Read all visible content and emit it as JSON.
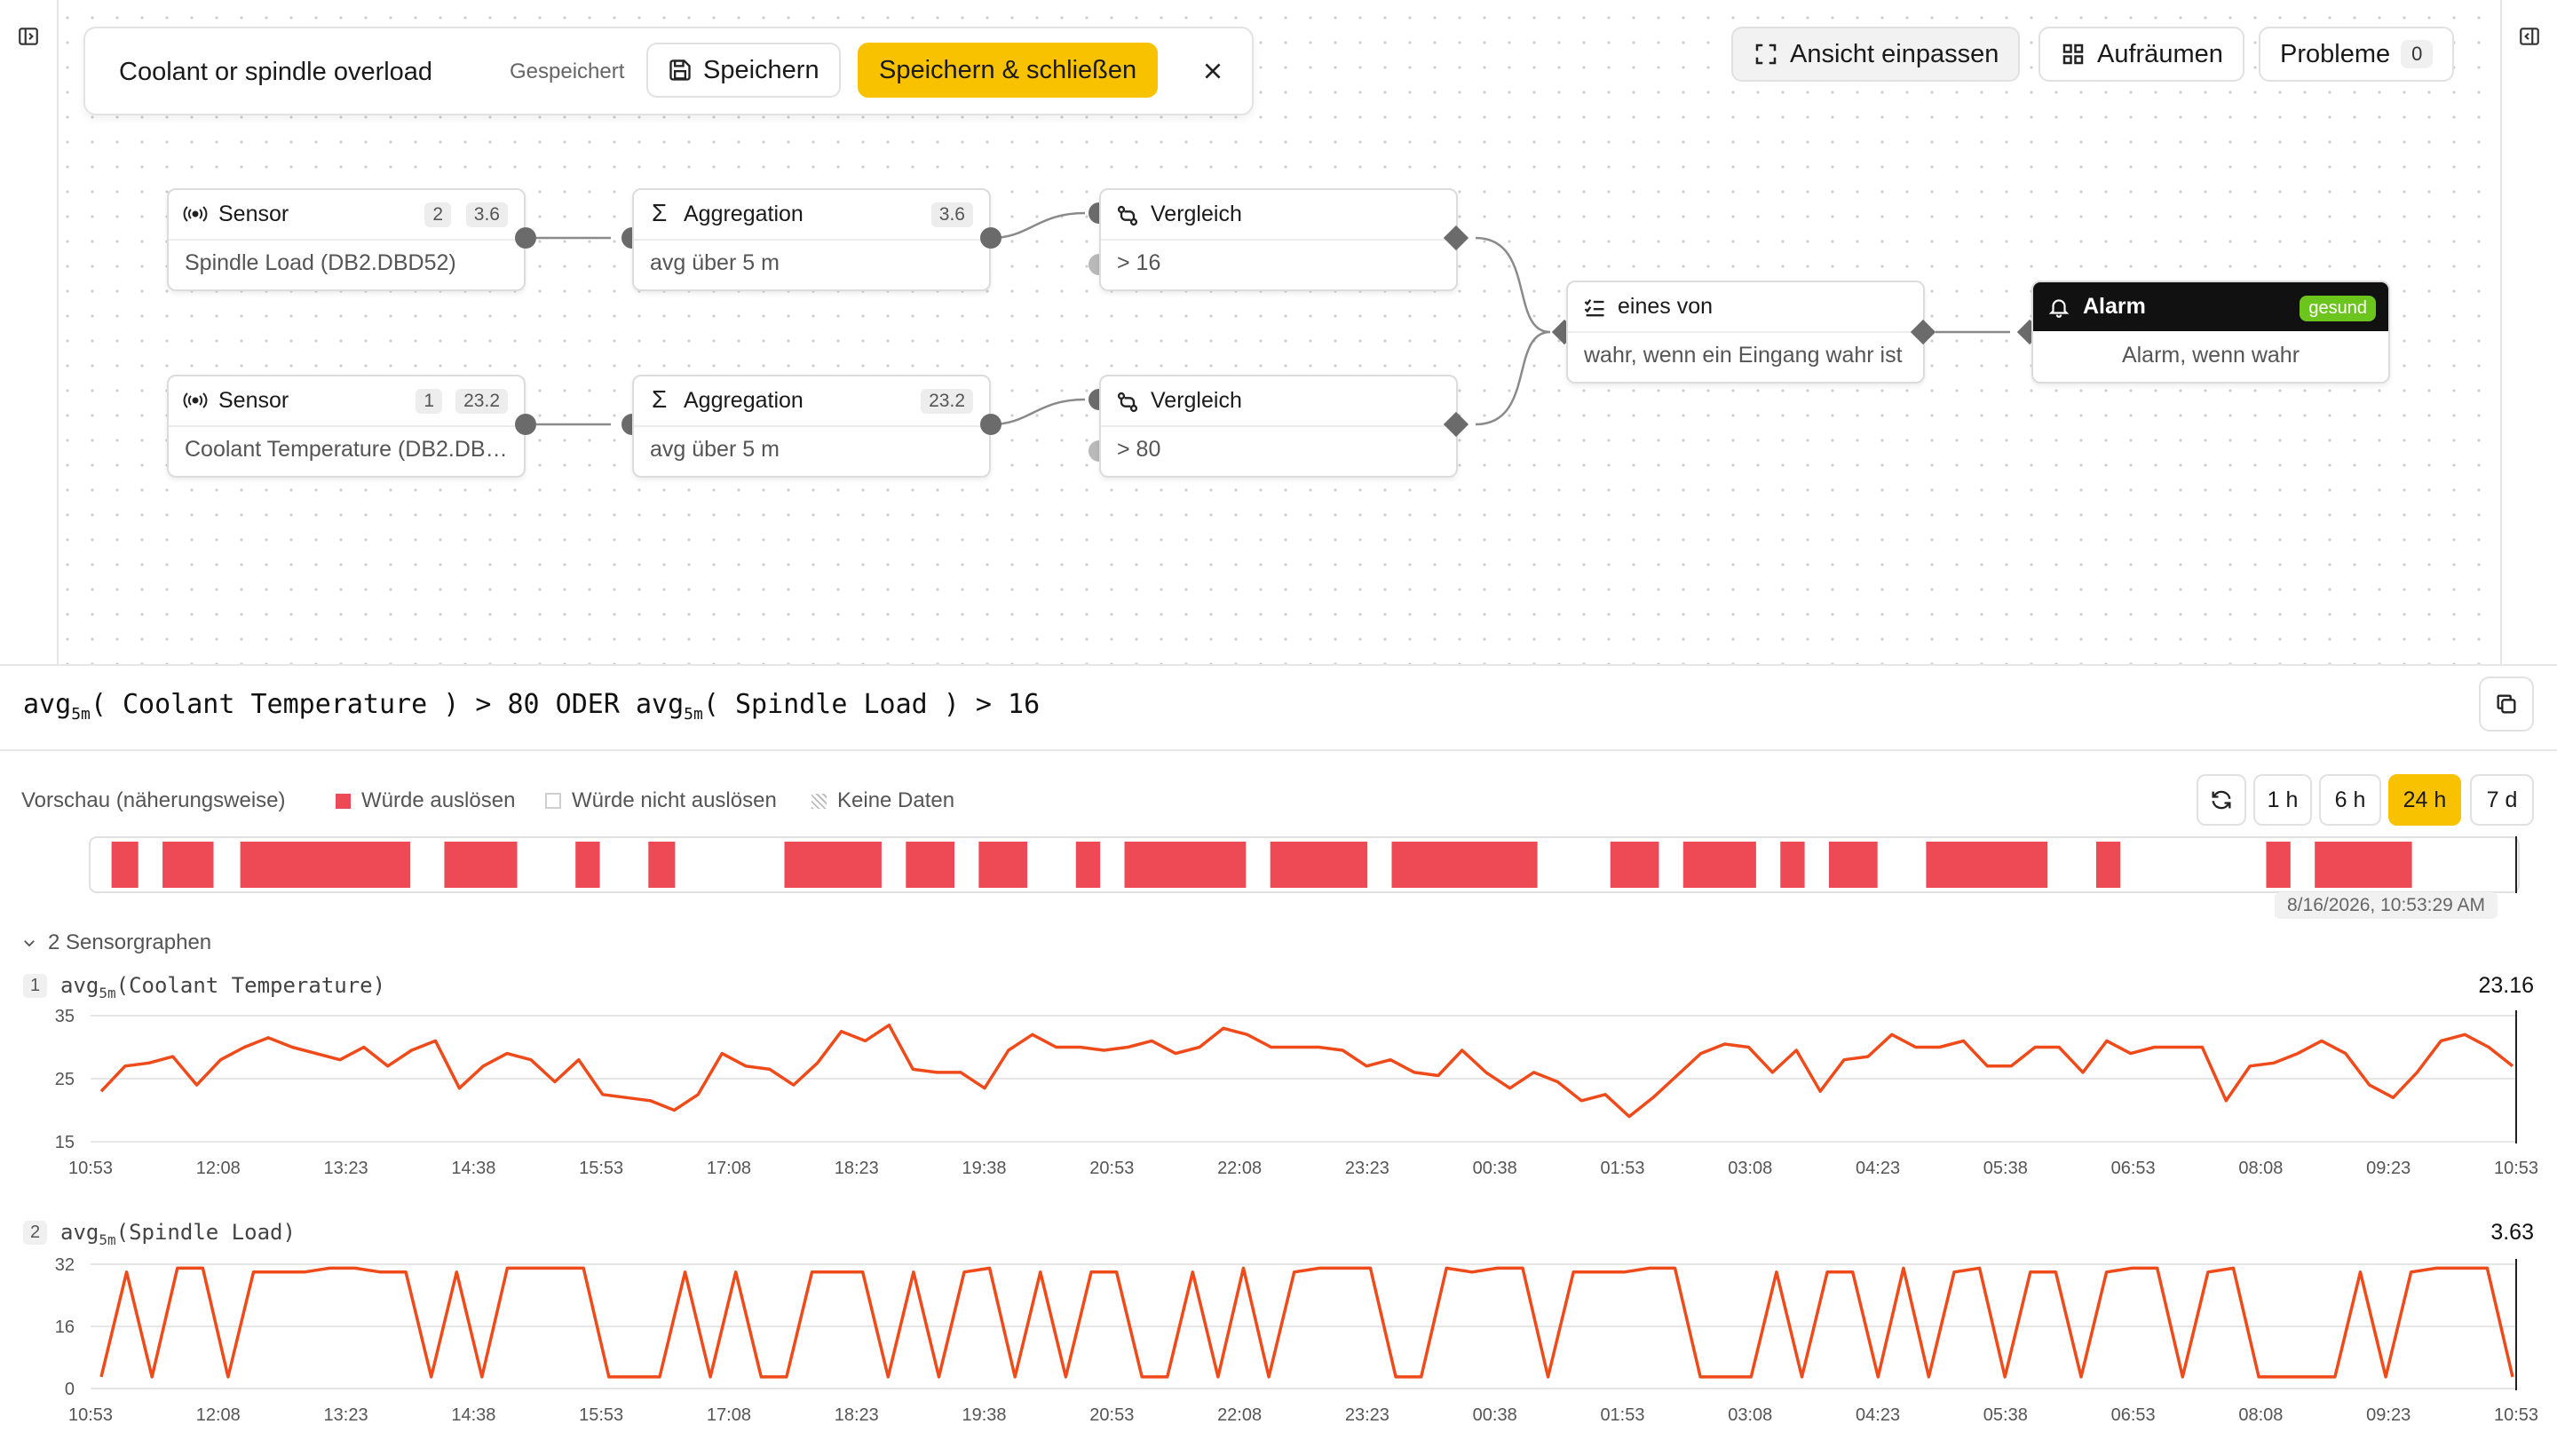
{
  "header": {
    "rule_name": "Coolant or spindle overload",
    "saved_status": "Gespeichert",
    "save_label": "Speichern",
    "save_close_label": "Speichern & schließen"
  },
  "toolbar": {
    "fit_view_label": "Ansicht einpassen",
    "tidy_label": "Aufräumen",
    "problems_label": "Probleme",
    "problems_count": "0"
  },
  "nodes": {
    "sensor1": {
      "title": "Sensor",
      "badge_a": "2",
      "badge_b": "3.6",
      "body": "Spindle Load (DB2.DBD52)"
    },
    "agg1": {
      "title": "Aggregation",
      "badge": "3.6",
      "body": "avg über 5 m"
    },
    "cmp1": {
      "title": "Vergleich",
      "body": "> 16"
    },
    "sensor2": {
      "title": "Sensor",
      "badge_a": "1",
      "badge_b": "23.2",
      "body": "Coolant Temperature (DB2.DB…"
    },
    "agg2": {
      "title": "Aggregation",
      "badge": "23.2",
      "body": "avg über 5 m"
    },
    "cmp2": {
      "title": "Vergleich",
      "body": "> 80"
    },
    "anyof": {
      "title": "eines von",
      "body": "wahr, wenn ein Eingang wahr ist"
    },
    "alarm": {
      "title": "Alarm",
      "status": "gesund",
      "body": "Alarm, wenn wahr"
    }
  },
  "formula": {
    "a_fn": "avg",
    "a_sub": "5m",
    "a_arg": "( Coolant Temperature ) > 80",
    "op": "ODER",
    "b_fn": "avg",
    "b_sub": "5m",
    "b_arg": "( Spindle Load ) > 16"
  },
  "preview": {
    "label": "Vorschau (näherungsweise)",
    "legend_trigger": "Würde auslösen",
    "legend_no_trigger": "Würde nicht auslösen",
    "legend_no_data": "Keine Daten",
    "ranges": [
      "1 h",
      "6 h",
      "24 h",
      "7 d"
    ],
    "active_range": "24 h",
    "cursor_timestamp": "8/16/2026, 10:53:29 AM",
    "trigger_color": "#ee4a55",
    "trigger_spans": [
      [
        0.009,
        0.02
      ],
      [
        0.03,
        0.051
      ],
      [
        0.062,
        0.132
      ],
      [
        0.146,
        0.176
      ],
      [
        0.2,
        0.21
      ],
      [
        0.23,
        0.241
      ],
      [
        0.286,
        0.326
      ],
      [
        0.336,
        0.356
      ],
      [
        0.366,
        0.386
      ],
      [
        0.406,
        0.416
      ],
      [
        0.426,
        0.476
      ],
      [
        0.486,
        0.526
      ],
      [
        0.536,
        0.596
      ],
      [
        0.626,
        0.646
      ],
      [
        0.656,
        0.686
      ],
      [
        0.696,
        0.706
      ],
      [
        0.716,
        0.736
      ],
      [
        0.756,
        0.806
      ],
      [
        0.826,
        0.836
      ],
      [
        0.896,
        0.906
      ],
      [
        0.916,
        0.956
      ]
    ]
  },
  "sensor_graphs": {
    "toggle_label": "2 Sensorgraphen",
    "line_color": "#ee4a1a",
    "x_ticks": [
      "10:53",
      "12:08",
      "13:23",
      "14:38",
      "15:53",
      "17:08",
      "18:23",
      "19:38",
      "20:53",
      "22:08",
      "23:23",
      "00:38",
      "01:53",
      "03:08",
      "04:23",
      "05:38",
      "06:53",
      "08:08",
      "09:23",
      "10:53"
    ],
    "graphs": [
      {
        "index": "1",
        "fn": "avg",
        "sub": "5m",
        "arg": "(Coolant Temperature)",
        "current": "23.16",
        "y_ticks": [
          "35",
          "25",
          "15"
        ],
        "ylim": [
          15,
          35
        ],
        "values": [
          23,
          27,
          27.5,
          28.5,
          24,
          28,
          30,
          31.5,
          30,
          29,
          28,
          30,
          27,
          29.5,
          31,
          23.5,
          27,
          29,
          28,
          24.5,
          28,
          22.5,
          22,
          21.5,
          20,
          22.5,
          29,
          27,
          26.5,
          24,
          27.5,
          32.5,
          31,
          33.5,
          26.5,
          26,
          26,
          23.5,
          29.5,
          32,
          30,
          30,
          29.5,
          30,
          31,
          29,
          30,
          33,
          32,
          30,
          30,
          30,
          29.5,
          27,
          28,
          26,
          25.5,
          29.5,
          26,
          23.5,
          26,
          24.5,
          21.5,
          22.5,
          19,
          22,
          25.5,
          29,
          30.5,
          30,
          26,
          29.5,
          23,
          28,
          28.5,
          32,
          30,
          30,
          31,
          27,
          27,
          30,
          30,
          26,
          31,
          29,
          30,
          30,
          30,
          21.5,
          27,
          27.5,
          29,
          31,
          29,
          24,
          22,
          26,
          31,
          32,
          30,
          27
        ]
      },
      {
        "index": "2",
        "fn": "avg",
        "sub": "5m",
        "arg": "(Spindle Load)",
        "current": "3.63",
        "y_ticks": [
          "32",
          "16",
          "0"
        ],
        "ylim": [
          0,
          32
        ],
        "values": [
          3,
          30,
          3,
          31,
          31,
          3,
          30,
          30,
          30,
          31,
          31,
          30,
          30,
          3,
          30,
          3,
          31,
          31,
          31,
          31,
          3,
          3,
          3,
          30,
          3,
          30,
          3,
          3,
          30,
          30,
          30,
          3,
          30,
          3,
          30,
          31,
          3,
          30,
          3,
          30,
          30,
          3,
          3,
          30,
          3,
          31,
          3,
          30,
          31,
          31,
          31,
          3,
          3,
          31,
          30,
          31,
          31,
          3,
          30,
          30,
          30,
          31,
          31,
          3,
          3,
          3,
          30,
          3,
          30,
          30,
          3,
          31,
          3,
          30,
          31,
          3,
          30,
          30,
          3,
          30,
          31,
          31,
          3,
          30,
          31,
          3,
          3,
          3,
          3,
          30,
          3,
          30,
          31,
          31,
          31,
          3
        ]
      }
    ]
  }
}
